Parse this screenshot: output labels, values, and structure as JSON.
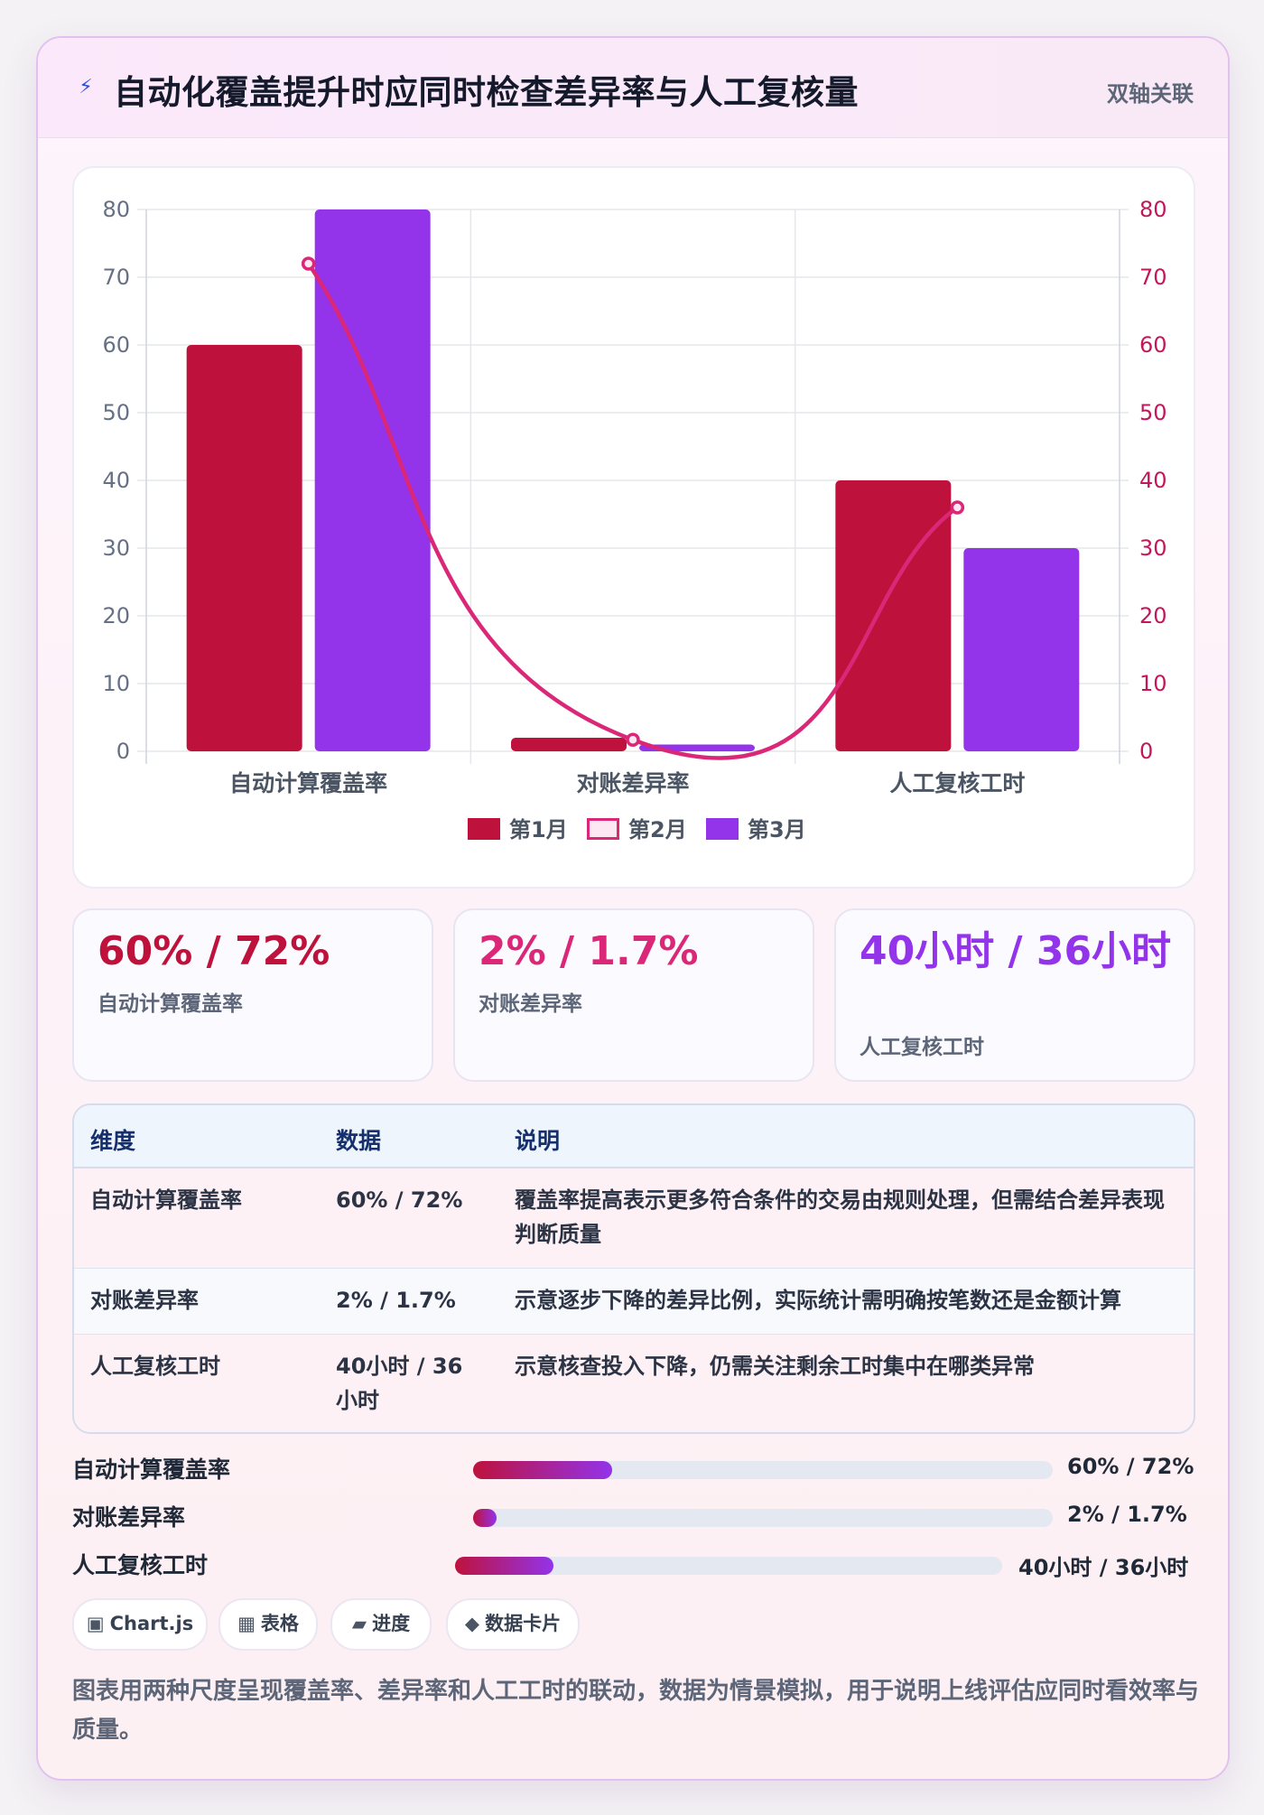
{
  "header": {
    "icon": "bolt-icon",
    "title": "自动化覆盖提升时应同时检查差异率与人工复核量",
    "badge": "双轴关联"
  },
  "chart_data": {
    "type": "bar",
    "categories": [
      "自动计算覆盖率",
      "对账差异率",
      "人工复核工时"
    ],
    "series": [
      {
        "name": "第1月",
        "type": "bar",
        "axis": "left",
        "color": "#be123c",
        "values": [
          60,
          2,
          40
        ]
      },
      {
        "name": "第2月",
        "type": "line",
        "axis": "right",
        "color": "#db2777",
        "values": [
          72,
          1.7,
          36
        ]
      },
      {
        "name": "第3月",
        "type": "bar",
        "axis": "left",
        "color": "#9333ea",
        "values": [
          80,
          1,
          30
        ]
      }
    ],
    "ylim": [
      0,
      80
    ],
    "y2lim": [
      0,
      80
    ],
    "yticks": [
      0,
      10,
      20,
      30,
      40,
      50,
      60,
      70,
      80
    ],
    "legend": "bottom",
    "grid": true
  },
  "stats": [
    {
      "value": "60% / 72%",
      "label": "自动计算覆盖率",
      "color": "#be123c"
    },
    {
      "value": "2% / 1.7%",
      "label": "对账差异率",
      "color": "#db2777"
    },
    {
      "value": "40小时 / 36小时",
      "label": "人工复核工时",
      "color": "#9333ea"
    }
  ],
  "table": {
    "headers": [
      "维度",
      "数据",
      "说明"
    ],
    "rows": [
      {
        "dim": "自动计算覆盖率",
        "data": "60% / 72%",
        "desc": "覆盖率提高表示更多符合条件的交易由规则处理，但需结合差异表现判断质量"
      },
      {
        "dim": "对账差异率",
        "data": "2% / 1.7%",
        "desc": "示意逐步下降的差异比例，实际统计需明确按笔数还是金额计算"
      },
      {
        "dim": "人工复核工时",
        "data": "40小时 / 36小时",
        "desc": "示意核查投入下降，仍需关注剩余工时集中在哪类异常"
      }
    ]
  },
  "progress": [
    {
      "label": "自动计算覆盖率",
      "value": "60% / 72%",
      "fill": 0.24
    },
    {
      "label": "对账差异率",
      "value": "2% / 1.7%",
      "fill": 0.04
    },
    {
      "label": "人工复核工时",
      "value": "40小时 / 36小时",
      "fill": 0.18
    }
  ],
  "chips": [
    {
      "icon": "chart-icon",
      "glyph": "▣",
      "label": "Chart.js"
    },
    {
      "icon": "table-icon",
      "glyph": "▦",
      "label": "表格"
    },
    {
      "icon": "progress-icon",
      "glyph": "▰",
      "label": "进度"
    },
    {
      "icon": "card-icon",
      "glyph": "◆",
      "label": "数据卡片"
    }
  ],
  "footnote": "图表用两种尺度呈现覆盖率、差异率和人工工时的联动，数据为情景模拟，用于说明上线评估应同时看效率与质量。"
}
